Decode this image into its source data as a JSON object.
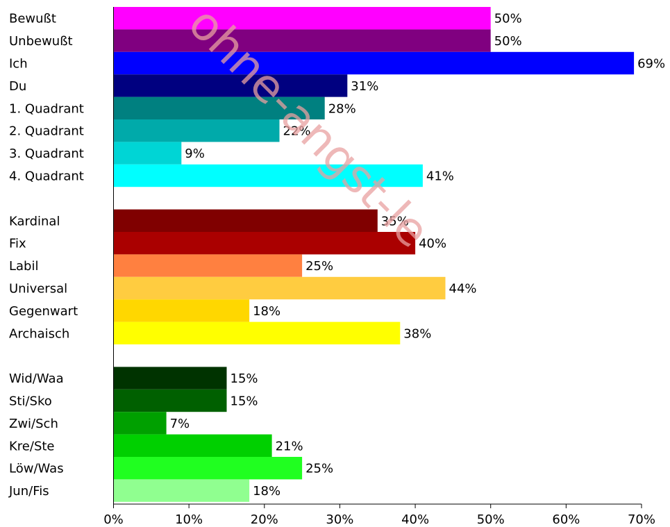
{
  "chart_data": {
    "type": "bar",
    "orientation": "horizontal",
    "title": "",
    "xlabel": "",
    "ylabel": "",
    "xlim": [
      0,
      70
    ],
    "ticks": [
      "0%",
      "10%",
      "20%",
      "30%",
      "40%",
      "50%",
      "60%",
      "70%"
    ],
    "grid": false,
    "legend": "none",
    "groups": [
      {
        "bars": [
          {
            "label": "Bewußt",
            "value": 50,
            "display": "50%",
            "color": "#ff00ff"
          },
          {
            "label": "Unbewußt",
            "value": 50,
            "display": "50%",
            "color": "#800080"
          },
          {
            "label": "Ich",
            "value": 69,
            "display": "69%",
            "color": "#0000ff"
          },
          {
            "label": "Du",
            "value": 31,
            "display": "31%",
            "color": "#000080"
          },
          {
            "label": "1. Quadrant",
            "value": 28,
            "display": "28%",
            "color": "#008080"
          },
          {
            "label": "2. Quadrant",
            "value": 22,
            "display": "22%",
            "color": "#00aaaa"
          },
          {
            "label": "3. Quadrant",
            "value": 9,
            "display": "9%",
            "color": "#00d5d5"
          },
          {
            "label": "4. Quadrant",
            "value": 41,
            "display": "41%",
            "color": "#00ffff"
          }
        ]
      },
      {
        "bars": [
          {
            "label": "Kardinal",
            "value": 35,
            "display": "35%",
            "color": "#800000"
          },
          {
            "label": "Fix",
            "value": 40,
            "display": "40%",
            "color": "#aa0000"
          },
          {
            "label": "Labil",
            "value": 25,
            "display": "25%",
            "color": "#ff8040"
          },
          {
            "label": "Universal",
            "value": 44,
            "display": "44%",
            "color": "#ffcc40"
          },
          {
            "label": "Gegenwart",
            "value": 18,
            "display": "18%",
            "color": "#ffd700"
          },
          {
            "label": "Archaisch",
            "value": 38,
            "display": "38%",
            "color": "#ffff00"
          }
        ]
      },
      {
        "bars": [
          {
            "label": "Wid/Waa",
            "value": 15,
            "display": "15%",
            "color": "#003300"
          },
          {
            "label": "Sti/Sko",
            "value": 15,
            "display": "15%",
            "color": "#006000"
          },
          {
            "label": "Zwi/Sch",
            "value": 7,
            "display": "7%",
            "color": "#00a000"
          },
          {
            "label": "Kre/Ste",
            "value": 21,
            "display": "21%",
            "color": "#00d000"
          },
          {
            "label": "Löw/Was",
            "value": 25,
            "display": "25%",
            "color": "#20ff20"
          },
          {
            "label": "Jun/Fis",
            "value": 18,
            "display": "18%",
            "color": "#90ff90"
          }
        ]
      }
    ],
    "watermark": "ohne-angst-le"
  }
}
